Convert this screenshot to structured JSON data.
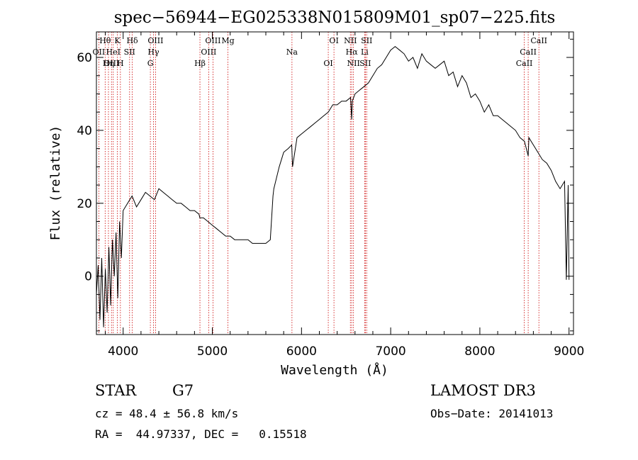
{
  "chart_data": {
    "type": "line",
    "title": "spec−56944−EG025338N015809M01_sp07−225.fits",
    "xlabel": "Wavelength (Å)",
    "ylabel": "Flux (relative)",
    "xlim": [
      3700,
      9050
    ],
    "ylim": [
      -16,
      67
    ],
    "xticks": [
      4000,
      5000,
      6000,
      7000,
      8000,
      9000
    ],
    "yticks": [
      0,
      20,
      40,
      60
    ],
    "grid": false,
    "series": [
      {
        "x": [
          3700,
          3720,
          3740,
          3760,
          3780,
          3800,
          3820,
          3840,
          3860,
          3880,
          3900,
          3920,
          3940,
          3960,
          3980,
          4000,
          4050,
          4100,
          4150,
          4200,
          4250,
          4300,
          4350,
          4400,
          4450,
          4500,
          4550,
          4600,
          4650,
          4700,
          4750,
          4800,
          4850,
          4860,
          4900,
          4950,
          5000,
          5050,
          5100,
          5150,
          5200,
          5250,
          5300,
          5350,
          5400,
          5450,
          5500,
          5550,
          5600,
          5650,
          5680,
          5690,
          5720,
          5750,
          5800,
          5850,
          5890,
          5900,
          5950,
          6000,
          6050,
          6100,
          6150,
          6200,
          6250,
          6300,
          6350,
          6400,
          6450,
          6500,
          6550,
          6563,
          6570,
          6600,
          6650,
          6700,
          6750,
          6800,
          6850,
          6900,
          6950,
          7000,
          7050,
          7100,
          7150,
          7200,
          7250,
          7300,
          7350,
          7400,
          7450,
          7500,
          7550,
          7600,
          7650,
          7700,
          7750,
          7800,
          7850,
          7900,
          7950,
          8000,
          8050,
          8100,
          8150,
          8200,
          8250,
          8300,
          8350,
          8400,
          8450,
          8500,
          8542,
          8550,
          8600,
          8650,
          8700,
          8750,
          8800,
          8850,
          8900,
          8950,
          8970,
          8990,
          9000
        ],
        "y": [
          -5,
          3,
          -12,
          5,
          -14,
          2,
          -10,
          8,
          -8,
          10,
          0,
          12,
          -6,
          15,
          5,
          18,
          20,
          22,
          19,
          21,
          23,
          22,
          21,
          24,
          23,
          22,
          21,
          20,
          20,
          19,
          18,
          18,
          17,
          16,
          16,
          15,
          14,
          13,
          12,
          11,
          11,
          10,
          10,
          10,
          10,
          9,
          9,
          9,
          9,
          10,
          22,
          24,
          27,
          30,
          34,
          35,
          36,
          30,
          38,
          39,
          40,
          41,
          42,
          43,
          44,
          45,
          47,
          47,
          48,
          48,
          49,
          43,
          48,
          50,
          51,
          52,
          53,
          55,
          57,
          58,
          60,
          62,
          63,
          62,
          61,
          59,
          60,
          57,
          61,
          59,
          58,
          57,
          58,
          59,
          55,
          56,
          52,
          55,
          53,
          49,
          50,
          48,
          45,
          47,
          44,
          44,
          43,
          42,
          41,
          40,
          38,
          37,
          33,
          38,
          36,
          34,
          32,
          31,
          29,
          26,
          24,
          26,
          -1,
          25,
          -1
        ]
      }
    ],
    "lines": [
      {
        "label": "Hθ",
        "x": 3798
      },
      {
        "label": "OII",
        "x": 3727
      },
      {
        "label": "OIII",
        "x": 3869
      },
      {
        "label": "K",
        "x": 3934
      },
      {
        "label": "HeI",
        "x": 3889
      },
      {
        "label": "Hη",
        "x": 3835
      },
      {
        "label": "Hδ",
        "x": 4102
      },
      {
        "label": "SII",
        "x": 4072
      },
      {
        "label": "H",
        "x": 3969
      },
      {
        "label": "OIII",
        "x": 4363
      },
      {
        "label": "Hγ",
        "x": 4340
      },
      {
        "label": "G",
        "x": 4305
      },
      {
        "label": "OIII",
        "x": 5007
      },
      {
        "label": "OIII",
        "x": 4959
      },
      {
        "label": "Hβ",
        "x": 4861
      },
      {
        "label": "Mg",
        "x": 5175
      },
      {
        "label": "Na",
        "x": 5893
      },
      {
        "label": "OI",
        "x": 6300
      },
      {
        "label": "OI",
        "x": 6364
      },
      {
        "label": "Hα",
        "x": 6563
      },
      {
        "label": "SII",
        "x": 6716
      },
      {
        "label": "NII",
        "x": 6548
      },
      {
        "label": "Li",
        "x": 6708
      },
      {
        "label": "NII",
        "x": 6583
      },
      {
        "label": "SII",
        "x": 6731
      },
      {
        "label": "CaII",
        "x": 8542
      },
      {
        "label": "CaII",
        "x": 8498
      },
      {
        "label": "CaII",
        "x": 8662
      }
    ]
  },
  "info": {
    "class_label": "STAR",
    "subclass": "G7",
    "survey": "LAMOST DR3",
    "cz": "cz = 48.4 ± 56.8 km/s",
    "obs_date": "Obs−Date: 20141013",
    "radec": "RA =  44.97337, DEC =   0.15518"
  },
  "colors": {
    "spectrum": "#000000",
    "line_marker": "#cc0000",
    "background": "#ffffff"
  }
}
